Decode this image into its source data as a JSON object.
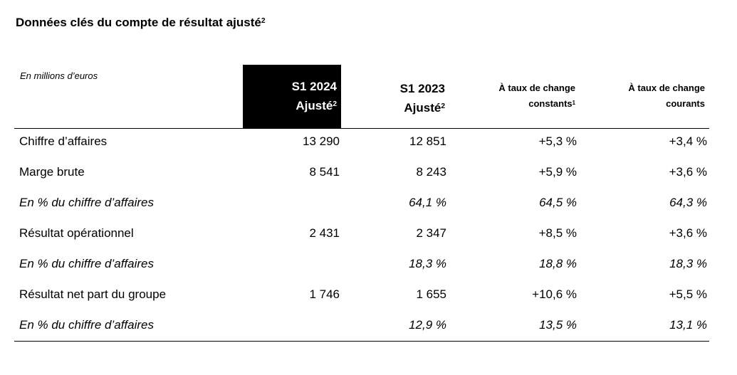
{
  "title": {
    "text": "Données clés du compte de résultat ajusté",
    "sup": "2"
  },
  "unit_label": "En millions d’euros",
  "columns": [
    {
      "line1": "S1 2024",
      "line2": "Ajusté",
      "sup": "2"
    },
    {
      "line1": "S1 2023",
      "line2": "Ajusté",
      "sup": "2"
    },
    {
      "line1": "À taux de change",
      "line2": "constants",
      "sup": "1"
    },
    {
      "line1": "À taux de change",
      "line2": "courants",
      "sup": ""
    }
  ],
  "rows": [
    {
      "label": "Chiffre d’affaires",
      "values": [
        "13 290",
        "12 851",
        "+5,3 %",
        "+3,4 %"
      ],
      "italic": false
    },
    {
      "label": "Marge brute",
      "values": [
        "8 541",
        "8 243",
        "+5,9 %",
        "+3,6 %"
      ],
      "italic": false
    },
    {
      "label": "En % du chiffre d’affaires",
      "values": [
        "",
        "64,1 %",
        "64,5 %",
        "64,3 %"
      ],
      "italic": true
    },
    {
      "label": "Résultat opérationnel",
      "values": [
        "2 431",
        "2 347",
        "+8,5 %",
        "+3,6 %"
      ],
      "italic": false
    },
    {
      "label": "En % du chiffre d’affaires",
      "values": [
        "",
        "18,3 %",
        "18,8 %",
        "18,3 %"
      ],
      "italic": true
    },
    {
      "label": "Résultat net part du groupe",
      "values": [
        "1 746",
        "1 655",
        "+10,6 %",
        "+5,5 %"
      ],
      "italic": false
    },
    {
      "label": "En % du chiffre d’affaires",
      "values": [
        "",
        "12,9 %",
        "13,5 %",
        "13,1 %"
      ],
      "italic": true
    }
  ]
}
